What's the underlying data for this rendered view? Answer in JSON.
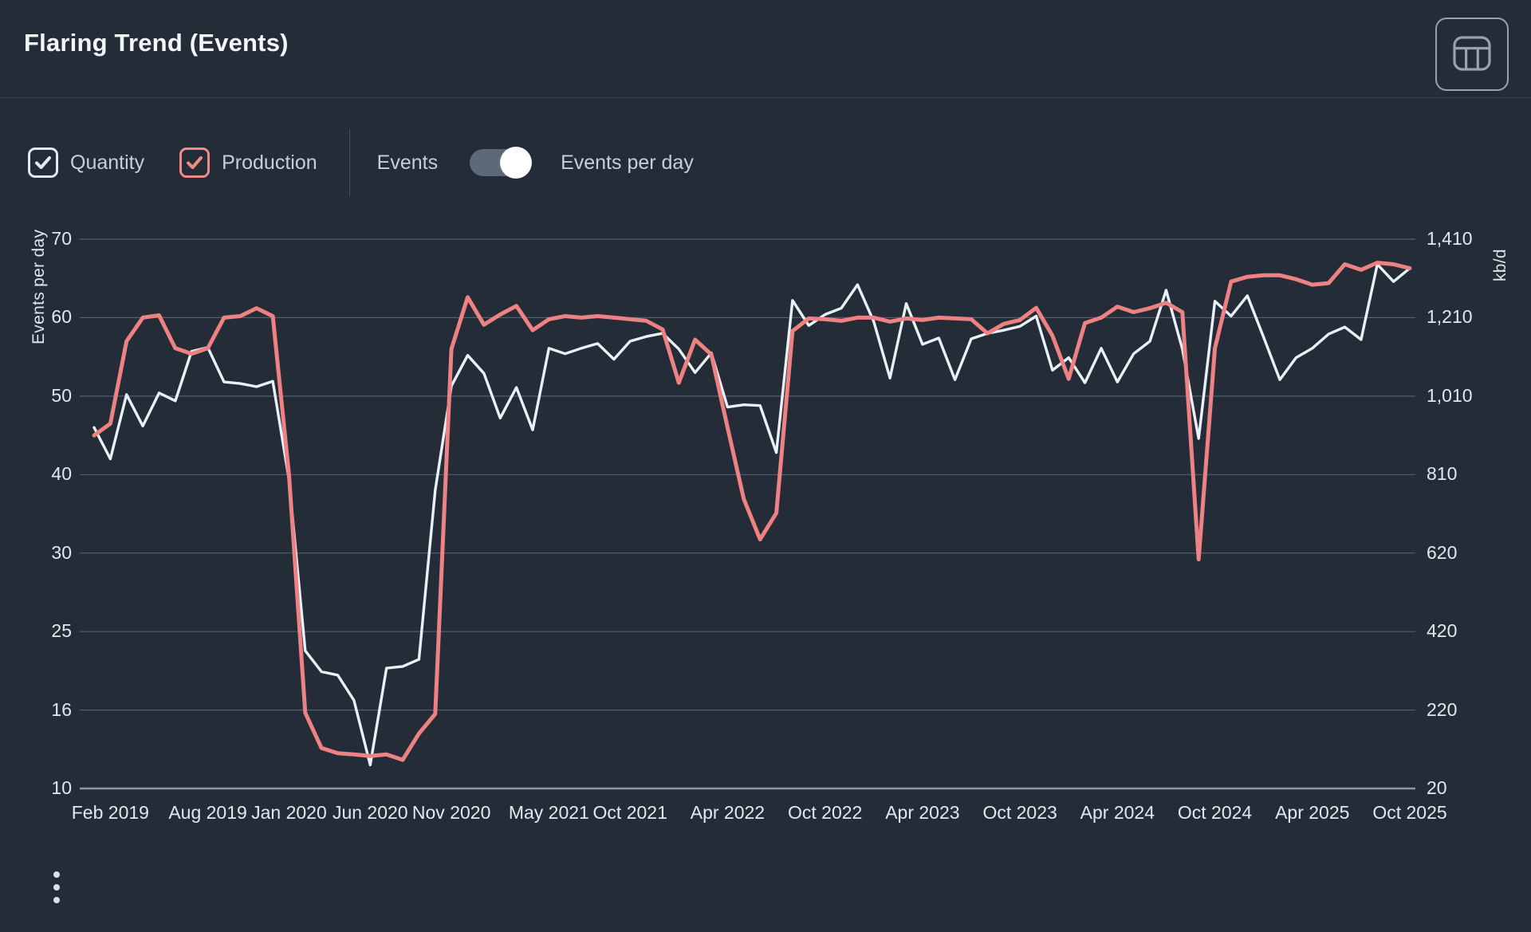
{
  "header": {
    "title": "Flaring Trend (Events)"
  },
  "controls": {
    "checkboxes": [
      {
        "label": "Quantity",
        "checked": true,
        "color": "#dcebf5"
      },
      {
        "label": "Production",
        "checked": true,
        "color": "#ef8c86"
      }
    ],
    "events_label": "Events",
    "events_per_day_label": "Events per day",
    "toggle_state": "on"
  },
  "colors": {
    "background": "#242c37",
    "quantity_line": "#e9f1f8",
    "production_line": "#ee8181",
    "gridline": "#59687c",
    "axis_line": "#8c98a7",
    "accent_text": "#e1e8f0"
  },
  "chart_data": {
    "type": "line",
    "title": "Flaring Trend (Events)",
    "grid": true,
    "left_axis": {
      "title": "Events per day",
      "tick_labels": [
        "70",
        "60",
        "50",
        "40",
        "30",
        "25",
        "16",
        "10"
      ],
      "tick_values": [
        70,
        60,
        50,
        40,
        30,
        25,
        16,
        10
      ]
    },
    "right_axis": {
      "title": "kb/d",
      "tick_labels": [
        "1,410",
        "1,210",
        "1,010",
        "810",
        "620",
        "420",
        "220",
        "20"
      ],
      "tick_values": [
        1410,
        1210,
        1010,
        810,
        620,
        420,
        220,
        20
      ]
    },
    "x_ticks": [
      {
        "label": "Feb 2019",
        "month_index": 1
      },
      {
        "label": "Aug 2019",
        "month_index": 7
      },
      {
        "label": "Jan 2020",
        "month_index": 12
      },
      {
        "label": "Jun 2020",
        "month_index": 17
      },
      {
        "label": "Nov 2020",
        "month_index": 22
      },
      {
        "label": "May 2021",
        "month_index": 28
      },
      {
        "label": "Oct 2021",
        "month_index": 33
      },
      {
        "label": "Apr 2022",
        "month_index": 39
      },
      {
        "label": "Oct 2022",
        "month_index": 45
      },
      {
        "label": "Apr 2023",
        "month_index": 51
      },
      {
        "label": "Oct 2023",
        "month_index": 57
      },
      {
        "label": "Apr 2024",
        "month_index": 63
      },
      {
        "label": "Oct 2024",
        "month_index": 69
      },
      {
        "label": "Apr 2025",
        "month_index": 75
      },
      {
        "label": "Oct 2025",
        "month_index": 81
      }
    ],
    "months": [
      "Jan 2019",
      "Feb 2019",
      "Mar 2019",
      "Apr 2019",
      "May 2019",
      "Jun 2019",
      "Jul 2019",
      "Aug 2019",
      "Sep 2019",
      "Oct 2019",
      "Nov 2019",
      "Dec 2019",
      "Jan 2020",
      "Feb 2020",
      "Mar 2020",
      "Apr 2020",
      "May 2020",
      "Jun 2020",
      "Jul 2020",
      "Aug 2020",
      "Sep 2020",
      "Oct 2020",
      "Nov 2020",
      "Dec 2020",
      "Jan 2021",
      "Feb 2021",
      "Mar 2021",
      "Apr 2021",
      "May 2021",
      "Jun 2021",
      "Jul 2021",
      "Aug 2021",
      "Sep 2021",
      "Oct 2021",
      "Nov 2021",
      "Dec 2021",
      "Jan 2022",
      "Feb 2022",
      "Mar 2022",
      "Apr 2022",
      "May 2022",
      "Jun 2022",
      "Jul 2022",
      "Aug 2022",
      "Sep 2022",
      "Oct 2022",
      "Nov 2022",
      "Dec 2022",
      "Jan 2023",
      "Feb 2023",
      "Mar 2023",
      "Apr 2023",
      "May 2023",
      "Jun 2023",
      "Jul 2023",
      "Aug 2023",
      "Sep 2023",
      "Oct 2023",
      "Nov 2023",
      "Dec 2023",
      "Jan 2024",
      "Feb 2024",
      "Mar 2024",
      "Apr 2024",
      "May 2024",
      "Jun 2024",
      "Jul 2024",
      "Aug 2024",
      "Sep 2024",
      "Oct 2024",
      "Nov 2024",
      "Dec 2024",
      "Jan 2025",
      "Feb 2025",
      "Mar 2025",
      "Apr 2025",
      "May 2025",
      "Jun 2025",
      "Jul 2025",
      "Aug 2025",
      "Sep 2025",
      "Oct 2025"
    ],
    "series": [
      {
        "name": "Quantity",
        "axis": "left",
        "unit": "events/day",
        "color": "#e9f1f8",
        "values": [
          46,
          42,
          50.2,
          46.2,
          50.4,
          49.4,
          55.7,
          56.2,
          51.8,
          51.6,
          51.2,
          51.9,
          39.4,
          22.8,
          20.4,
          20,
          17.1,
          11.8,
          20.8,
          21,
          21.8,
          38,
          51.3,
          55.2,
          52.9,
          47.2,
          51.1,
          45.7,
          56.1,
          55.4,
          56.1,
          56.7,
          54.7,
          57,
          57.6,
          58,
          56,
          53,
          55.5,
          48.6,
          48.9,
          48.8,
          42.8,
          62.2,
          59,
          60.4,
          61.2,
          64.2,
          59.5,
          52.3,
          61.8,
          56.6,
          57.4,
          52.1,
          57.3,
          58,
          58.4,
          58.9,
          60.2,
          53.3,
          54.9,
          51.7,
          56.1,
          51.8,
          55.4,
          57,
          63.5,
          56,
          44.6,
          62.1,
          60.2,
          62.8,
          57.5,
          52.1,
          54.9,
          56.1,
          57.9,
          58.8,
          57.2,
          66.8,
          64.6,
          66.3
        ]
      },
      {
        "name": "Production",
        "axis": "right",
        "unit": "kb/d",
        "color": "#ee8181",
        "values": [
          910,
          940,
          1150,
          1210,
          1216,
          1132,
          1118,
          1132,
          1210,
          1214,
          1234,
          1214,
          810,
          213,
          123,
          110,
          107,
          103,
          107,
          93,
          160,
          210,
          1130,
          1262,
          1192,
          1218,
          1240,
          1178,
          1206,
          1214,
          1210,
          1214,
          1210,
          1206,
          1202,
          1180,
          1044,
          1154,
          1116,
          930,
          751,
          653,
          717,
          1176,
          1208,
          1206,
          1202,
          1210,
          1210,
          1200,
          1208,
          1204,
          1210,
          1208,
          1206,
          1170,
          1194,
          1204,
          1235,
          1164,
          1054,
          1196,
          1210,
          1238,
          1224,
          1234,
          1248,
          1224,
          604,
          1132,
          1302,
          1314,
          1318,
          1318,
          1308,
          1294,
          1298,
          1346,
          1332,
          1350,
          1346,
          1336
        ]
      }
    ]
  },
  "footer": {
    "menu_icon": "kebab-vertical"
  }
}
